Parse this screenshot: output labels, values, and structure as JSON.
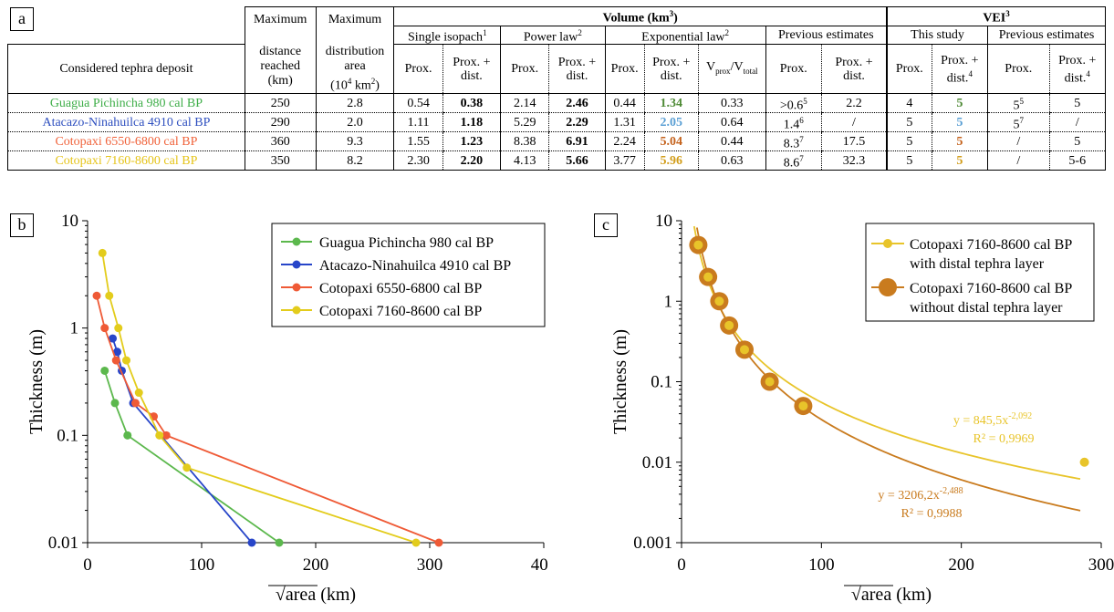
{
  "panels": {
    "a": "a",
    "b": "b",
    "c": "c"
  },
  "table": {
    "first_col_header": "Considered tephra deposit",
    "col_max_distance": [
      "Maximum",
      "distance",
      "reached",
      "(km)"
    ],
    "col_max_area": [
      "Maximum",
      "distribution",
      "area"
    ],
    "col_max_area_unit": "(10",
    "col_max_area_unit_sup": "4",
    "col_max_area_unit_end": " km",
    "col_max_area_unit_sup2": "2",
    "col_max_area_unit_close": ")",
    "volume_header": "Volume (km",
    "volume_sup": "3",
    "volume_close": ")",
    "vei_header": "VEI",
    "vei_sup": "3",
    "single_isopach": "Single isopach",
    "single_isopach_sup": "1",
    "power_law": "Power law",
    "power_law_sup": "2",
    "exponential_law": "Exponential law",
    "exponential_law_sup": "2",
    "previous_estimates": "Previous estimates",
    "this_study": "This study",
    "previous_estimates_vei": "Previous estimates",
    "prox": "Prox.",
    "prox_dist_1": "Prox. +",
    "prox_dist_2": "dist.",
    "dist_sup4": "4",
    "vprox": "V",
    "vprox_sub": "prox",
    "vtotal": "/V",
    "vtotal_sub": "total",
    "rows": [
      {
        "name": "Guagua Pichincha 980 cal BP",
        "color": "#3fae49",
        "dist": "250",
        "area": "2.8",
        "si_p": "0.54",
        "si_pd": "0.38",
        "pl_p": "2.14",
        "pl_pd": "2.46",
        "ex_p": "0.44",
        "ex_pd": "1.34",
        "ex_pd_color": "#4e8a35",
        "vr": "0.33",
        "pe_p": ">0.6",
        "pe_p_sup": "5",
        "pe_pd": "2.2",
        "vei_p": "4",
        "vei_pd": "5",
        "vei_pd_color": "#4e8a35",
        "pv_p": "5",
        "pv_p_sup": "5",
        "pv_pd": "5"
      },
      {
        "name": "Atacazo-Ninahuilca 4910 cal BP",
        "color": "#2e4fbf",
        "dist": "290",
        "area": "2.0",
        "si_p": "1.11",
        "si_pd": "1.18",
        "pl_p": "5.29",
        "pl_pd": "2.29",
        "ex_p": "1.31",
        "ex_pd": "2.05",
        "ex_pd_color": "#5a9fd4",
        "vr": "0.64",
        "pe_p": "1.4",
        "pe_p_sup": "6",
        "pe_pd": "/",
        "vei_p": "5",
        "vei_pd": "5",
        "vei_pd_color": "#5a9fd4",
        "pv_p": "5",
        "pv_p_sup": "7",
        "pv_pd": "/"
      },
      {
        "name": "Cotopaxi 6550-6800 cal BP",
        "color": "#f0623a",
        "dist": "360",
        "area": "9.3",
        "si_p": "1.55",
        "si_pd": "1.23",
        "pl_p": "8.38",
        "pl_pd": "6.91",
        "ex_p": "2.24",
        "ex_pd": "5.04",
        "ex_pd_color": "#c4621c",
        "vr": "0.44",
        "pe_p": "8.3",
        "pe_p_sup": "7",
        "pe_pd": "17.5",
        "vei_p": "5",
        "vei_pd": "5",
        "vei_pd_color": "#c4621c",
        "pv_p": "/",
        "pv_p_sup": "",
        "pv_pd": "5"
      },
      {
        "name": "Cotopaxi 7160-8600 cal BP",
        "color": "#e6c419",
        "dist": "350",
        "area": "8.2",
        "si_p": "2.30",
        "si_pd": "2.20",
        "pl_p": "4.13",
        "pl_pd": "5.66",
        "ex_p": "3.77",
        "ex_pd": "5.96",
        "ex_pd_color": "#d29d1a",
        "vr": "0.63",
        "pe_p": "8.6",
        "pe_p_sup": "7",
        "pe_pd": "32.3",
        "vei_p": "5",
        "vei_pd": "5",
        "vei_pd_color": "#d29d1a",
        "pv_p": "/",
        "pv_p_sup": "",
        "pv_pd": "5-6"
      }
    ]
  },
  "chart_data": [
    {
      "type": "line",
      "panel": "b",
      "ylabel": "Thickness (m)",
      "xlabel": "√area (km)",
      "xlim": [
        0,
        400
      ],
      "ylim": [
        0.01,
        10
      ],
      "yscale": "log",
      "xticks": [
        "0",
        "100",
        "200",
        "300",
        "400"
      ],
      "yticks": [
        "0.01",
        "0.1",
        "1",
        "10"
      ],
      "legend_position": "top-right",
      "series": [
        {
          "name": "Guagua Pichincha 980 cal BP",
          "color": "#5cb84d",
          "points": [
            [
              15,
              0.4
            ],
            [
              24,
              0.2
            ],
            [
              35,
              0.1
            ],
            [
              168,
              0.01
            ]
          ]
        },
        {
          "name": "Atacazo-Ninahuilca 4910 cal BP",
          "color": "#2745c9",
          "points": [
            [
              22,
              0.8
            ],
            [
              26,
              0.6
            ],
            [
              30,
              0.4
            ],
            [
              40,
              0.2
            ],
            [
              144,
              0.01
            ]
          ]
        },
        {
          "name": "Cotopaxi 6550-6800 cal BP",
          "color": "#ef5a36",
          "points": [
            [
              8,
              2.0
            ],
            [
              15,
              1.0
            ],
            [
              25,
              0.5
            ],
            [
              42,
              0.2
            ],
            [
              58,
              0.15
            ],
            [
              69,
              0.1
            ],
            [
              308,
              0.01
            ]
          ]
        },
        {
          "name": "Cotopaxi 7160-8600 cal BP",
          "color": "#e3cc1c",
          "points": [
            [
              13,
              5.0
            ],
            [
              19,
              2.0
            ],
            [
              27,
              1.0
            ],
            [
              34,
              0.5
            ],
            [
              45,
              0.25
            ],
            [
              63,
              0.1
            ],
            [
              87,
              0.05
            ],
            [
              288,
              0.01
            ]
          ]
        }
      ]
    },
    {
      "type": "scatter",
      "panel": "c",
      "ylabel": "Thickness (m)",
      "xlabel": "√area (km)",
      "xlim": [
        0,
        300
      ],
      "ylim": [
        0.001,
        10
      ],
      "yscale": "log",
      "xticks": [
        "0",
        "100",
        "200",
        "300"
      ],
      "yticks": [
        "0.001",
        "0.01",
        "0.1",
        "1",
        "10"
      ],
      "legend_position": "top-right",
      "series": [
        {
          "name": "Cotopaxi 7160-8600 cal BP\nwith distal tephra layer",
          "legend_lines": [
            "Cotopaxi 7160-8600 cal BP",
            "with distal tephra layer"
          ],
          "color": "#e8c42a",
          "points": [
            [
              12,
              5.0
            ],
            [
              19,
              2.0
            ],
            [
              27,
              1.0
            ],
            [
              34,
              0.5
            ],
            [
              45,
              0.25
            ],
            [
              63,
              0.1
            ],
            [
              87,
              0.05
            ],
            [
              288,
              0.01
            ]
          ],
          "fit": {
            "a": 845.5,
            "b": -2.092
          },
          "equation": "y = 845,5x",
          "equation_exp": "-2,092",
          "r2": "R² = 0,9969"
        },
        {
          "name": "Cotopaxi 7160-8600 cal BP\nwithout distal tephra layer",
          "legend_lines": [
            "Cotopaxi 7160-8600 cal BP",
            "without distal tephra layer"
          ],
          "color": "#c97b1e",
          "points": [
            [
              12,
              5.0
            ],
            [
              19,
              2.0
            ],
            [
              27,
              1.0
            ],
            [
              34,
              0.5
            ],
            [
              45,
              0.25
            ],
            [
              63,
              0.1
            ],
            [
              87,
              0.05
            ]
          ],
          "fit": {
            "a": 3206.2,
            "b": -2.488
          },
          "equation": "y = 3206,2x",
          "equation_exp": "-2,488",
          "r2": "R² = 0,9988"
        }
      ]
    }
  ]
}
